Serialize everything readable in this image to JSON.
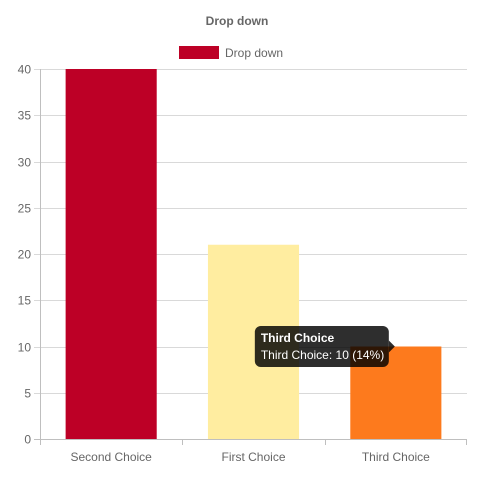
{
  "chart_data": {
    "type": "bar",
    "title": "Drop down",
    "legend": {
      "position": "top",
      "entries": [
        {
          "label": "Drop down",
          "color": "#BD0026"
        }
      ]
    },
    "categories": [
      "Second Choice",
      "First Choice",
      "Third Choice"
    ],
    "series": [
      {
        "name": "Drop down",
        "values": [
          40,
          21,
          10
        ],
        "colors": [
          "#BD0026",
          "#FFEDA0",
          "#FD7A1D"
        ]
      }
    ],
    "ylim": [
      0,
      40
    ],
    "yticks": [
      0,
      5,
      10,
      15,
      20,
      25,
      30,
      35,
      40
    ],
    "grid": true,
    "tooltip": {
      "category_index": 2,
      "title": "Third Choice",
      "body": "Third Choice: 10 (14%)"
    }
  }
}
